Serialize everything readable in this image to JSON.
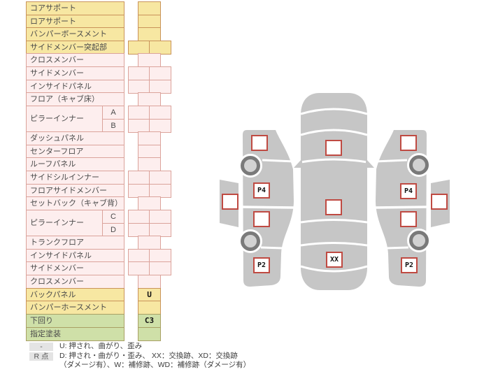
{
  "table": {
    "rows": [
      {
        "label": "コアサポート",
        "color": "yellow",
        "cells": 1,
        "values": [
          ""
        ]
      },
      {
        "label": "ロアサポート",
        "color": "yellow",
        "cells": 1,
        "values": [
          ""
        ]
      },
      {
        "label": "バンパーボースメント",
        "color": "yellow",
        "cells": 1,
        "values": [
          ""
        ]
      },
      {
        "label": "サイドメンバー突起部",
        "color": "yellow",
        "cells": 2,
        "values": [
          "",
          ""
        ]
      },
      {
        "label": "クロスメンバー",
        "color": "pink",
        "cells": 1,
        "values": [
          ""
        ]
      },
      {
        "label": "サイドメンバー",
        "color": "pink",
        "cells": 2,
        "values": [
          "",
          ""
        ]
      },
      {
        "label": "インサイドパネル",
        "color": "pink",
        "cells": 2,
        "values": [
          "",
          ""
        ]
      },
      {
        "label": "フロア（キャブ床）",
        "color": "pink",
        "cells": 1,
        "values": [
          ""
        ]
      },
      {
        "label": "ピラーインナー",
        "color": "pink",
        "sub": [
          {
            "label": "A",
            "cells": 2,
            "values": [
              "",
              ""
            ]
          },
          {
            "label": "B",
            "cells": 2,
            "values": [
              "",
              ""
            ]
          }
        ]
      },
      {
        "label": "ダッシュパネル",
        "color": "pink",
        "cells": 1,
        "values": [
          ""
        ]
      },
      {
        "label": "センターフロア",
        "color": "pink",
        "cells": 1,
        "values": [
          ""
        ]
      },
      {
        "label": "ルーフパネル",
        "color": "pink",
        "cells": 1,
        "values": [
          ""
        ]
      },
      {
        "label": "サイドシルインナー",
        "color": "pink",
        "cells": 2,
        "values": [
          "",
          ""
        ]
      },
      {
        "label": "フロアサイドメンバー",
        "color": "pink",
        "cells": 2,
        "values": [
          "",
          ""
        ]
      },
      {
        "label": "セットバック（キャブ背）",
        "color": "pink",
        "cells": 1,
        "values": [
          ""
        ]
      },
      {
        "label": "ピラーインナー",
        "color": "pink",
        "sub": [
          {
            "label": "C",
            "cells": 2,
            "values": [
              "",
              ""
            ]
          },
          {
            "label": "D",
            "cells": 2,
            "values": [
              "",
              ""
            ]
          }
        ]
      },
      {
        "label": "トランクフロア",
        "color": "pink",
        "cells": 1,
        "values": [
          ""
        ]
      },
      {
        "label": "インサイドパネル",
        "color": "pink",
        "cells": 2,
        "values": [
          "",
          ""
        ]
      },
      {
        "label": "サイドメンバー",
        "color": "pink",
        "cells": 2,
        "values": [
          "",
          ""
        ]
      },
      {
        "label": "クロスメンバー",
        "color": "pink",
        "cells": 1,
        "values": [
          ""
        ]
      },
      {
        "label": "バックパネル",
        "color": "yellow",
        "cells": 1,
        "values": [
          "U"
        ]
      },
      {
        "label": "バンパーホースメント",
        "color": "yellow",
        "cells": 1,
        "values": [
          ""
        ]
      },
      {
        "label": "下回り",
        "color": "green",
        "cells": 1,
        "values": [
          "C3"
        ]
      },
      {
        "label": "指定塗装",
        "color": "green",
        "cells": 1,
        "values": [
          ""
        ]
      }
    ]
  },
  "legend": {
    "row1_key": "-",
    "row1_text": "U: 押され、曲がり、歪み",
    "row2_key": "R 点",
    "row2_text": "D: 押され・曲がり・歪み、 XX：交換跡、XD：交換跡",
    "row3_text": "（ダメージ有）、W：補修跡、WD：補修跡（ダメージ有）"
  },
  "diagram": {
    "left_door_panel_marker": "",
    "left_side": {
      "front_fender": "",
      "front_door": "P4",
      "rear_door": "",
      "rear_fender": "P2"
    },
    "top_view": {
      "hood": "",
      "roof": "",
      "trunk": "XX"
    },
    "right_side": {
      "front_fender": "",
      "front_door": "P4",
      "rear_door": "",
      "rear_fender": "P2"
    },
    "right_door_panel_marker": ""
  },
  "colors": {
    "row_yellow": "#f7e7a2",
    "row_pink": "#fdeeee",
    "row_green": "#cfe0a8",
    "table_border": "#c9935a",
    "car_body_gray": "#c6c6c6",
    "wheel_gray": "#7a7a7a",
    "marker_border_red": "#bf4a42",
    "legend_key_gray": "#e4e4e4"
  }
}
